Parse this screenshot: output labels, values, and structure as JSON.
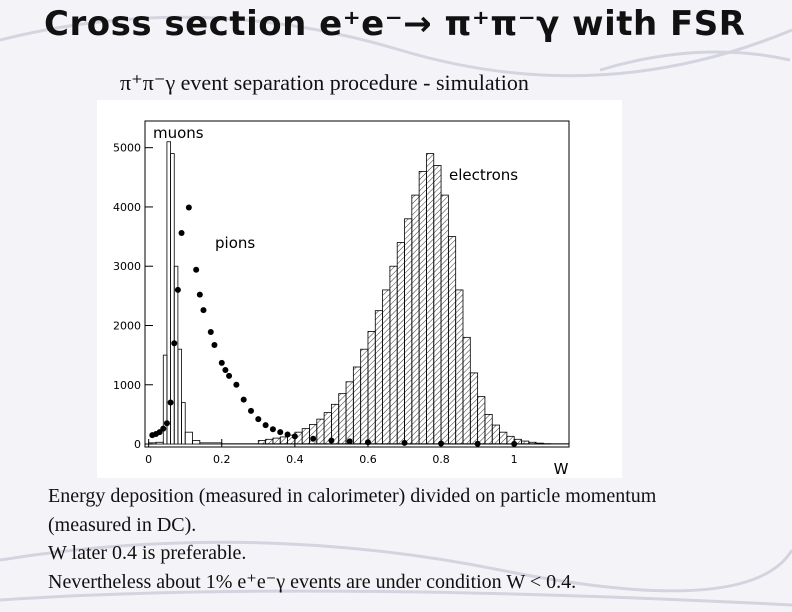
{
  "slide": {
    "title": "Cross section e⁺e⁻→ π⁺π⁻γ with FSR",
    "subtitle": "π⁺π⁻γ event separation procedure - simulation",
    "notes": [
      "Energy deposition (measured in calorimeter) divided on particle momentum",
      "(measured in DC).",
      "W later 0.4 is preferable.",
      "Nevertheless about 1% e⁺e⁻γ events are under condition W < 0.4."
    ]
  },
  "chart_data": {
    "type": "histogram",
    "xlabel": "W",
    "xlim": [
      -0.01,
      1.15
    ],
    "ylim": [
      -50,
      5450
    ],
    "xticks": [
      0,
      0.2,
      0.4,
      0.6,
      0.8,
      1
    ],
    "yticks": [
      0,
      1000,
      2000,
      3000,
      4000,
      5000
    ],
    "series": [
      {
        "name": "muons",
        "style": "outline",
        "color": "#000000",
        "bins": [
          0,
          0.02,
          0.04,
          0.05,
          0.06,
          0.07,
          0.08,
          0.09,
          0.1,
          0.12,
          0.14,
          0.2,
          1.15
        ],
        "counts": [
          20,
          30,
          1500,
          5100,
          4900,
          3000,
          1600,
          700,
          200,
          60,
          20,
          5
        ]
      },
      {
        "name": "pions",
        "style": "markers",
        "color": "#000000",
        "x": [
          0.01,
          0.02,
          0.03,
          0.04,
          0.05,
          0.06,
          0.07,
          0.08,
          0.09,
          0.11,
          0.13,
          0.14,
          0.15,
          0.17,
          0.18,
          0.2,
          0.21,
          0.22,
          0.24,
          0.26,
          0.28,
          0.3,
          0.32,
          0.34,
          0.36,
          0.38,
          0.4,
          0.45,
          0.5,
          0.55,
          0.6,
          0.7,
          0.8,
          0.9,
          1.0
        ],
        "values": [
          150,
          170,
          200,
          260,
          350,
          700,
          1700,
          2600,
          3560,
          3990,
          2940,
          2520,
          2260,
          1890,
          1670,
          1370,
          1250,
          1150,
          1000,
          750,
          560,
          420,
          320,
          250,
          200,
          160,
          130,
          90,
          60,
          45,
          30,
          20,
          10,
          5,
          2
        ]
      },
      {
        "name": "electrons",
        "style": "hatched",
        "color": "#000000",
        "bins": [
          0.3,
          0.32,
          0.34,
          0.36,
          0.38,
          0.4,
          0.42,
          0.44,
          0.46,
          0.48,
          0.5,
          0.52,
          0.54,
          0.56,
          0.58,
          0.6,
          0.62,
          0.64,
          0.66,
          0.68,
          0.7,
          0.72,
          0.74,
          0.76,
          0.78,
          0.8,
          0.82,
          0.84,
          0.86,
          0.88,
          0.9,
          0.92,
          0.94,
          0.96,
          0.98,
          1.0,
          1.02,
          1.04,
          1.06,
          1.08,
          1.1
        ],
        "counts": [
          60,
          80,
          100,
          120,
          150,
          200,
          260,
          330,
          420,
          530,
          670,
          850,
          1050,
          1300,
          1600,
          1900,
          2250,
          2600,
          3000,
          3400,
          3800,
          4200,
          4600,
          4900,
          4700,
          4200,
          3500,
          2600,
          1800,
          1200,
          800,
          500,
          320,
          200,
          130,
          80,
          50,
          30,
          15,
          5
        ]
      }
    ]
  }
}
